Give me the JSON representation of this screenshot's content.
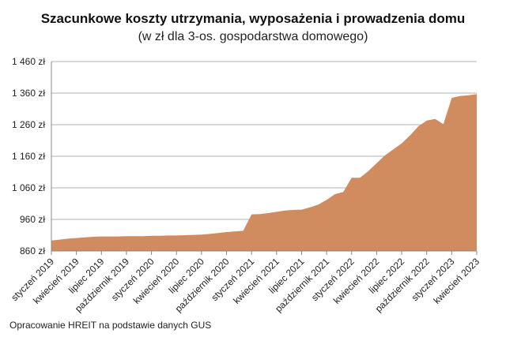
{
  "chart_data": {
    "type": "area",
    "title": "Szacunkowe koszty utrzymania, wyposażenia i prowadzenia domu",
    "subtitle": "(w zł dla 3-os. gospodarstwa domowego)",
    "source": "Opracowanie HREIT na podstawie danych GUS",
    "ylim": [
      860,
      1460
    ],
    "yticks": [
      "860 zł",
      "960 zł",
      "1 060 zł",
      "1 160 zł",
      "1 260 zł",
      "1 360 zł",
      "1 460 zł"
    ],
    "ytick_values": [
      860,
      960,
      1060,
      1160,
      1260,
      1360,
      1460
    ],
    "grid": true,
    "color": "#D08C5E",
    "xtick_labels": [
      "styczeń 2019",
      "kwiecień 2019",
      "lipiec 2019",
      "październik 2019",
      "styczeń 2020",
      "kwiecień 2020",
      "lipiec 2020",
      "październik 2020",
      "styczeń 2021",
      "kwiecień 2021",
      "lipiec 2021",
      "październik 2021",
      "styczeń 2022",
      "kwiecień 2022",
      "lipiec 2022",
      "październik 2022",
      "styczeń 2023",
      "kwiecień 2023"
    ],
    "x_start": "styczeń 2019",
    "x_end": "kwiecień 2023",
    "values": [
      893,
      896,
      899,
      901,
      903,
      905,
      906,
      906,
      906,
      907,
      907,
      907,
      908,
      908,
      909,
      909,
      910,
      911,
      912,
      914,
      917,
      920,
      922,
      924,
      976,
      977,
      980,
      984,
      988,
      990,
      991,
      998,
      1007,
      1022,
      1040,
      1047,
      1092,
      1092,
      1113,
      1138,
      1163,
      1182,
      1201,
      1226,
      1255,
      1273,
      1278,
      1262,
      1345,
      1351,
      1353,
      1357
    ]
  }
}
